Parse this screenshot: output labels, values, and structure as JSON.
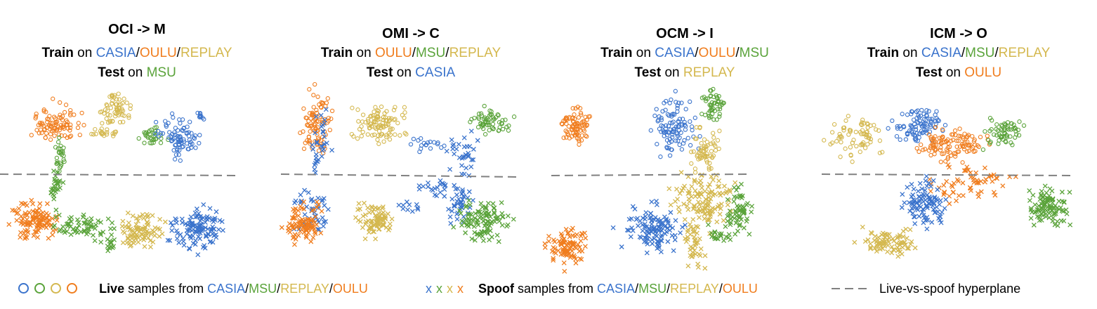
{
  "figure": {
    "legend": {
      "live_bold": "Live",
      "live_text": " samples from ",
      "spoof_bold": "Spoof",
      "spoof_text": " samples from ",
      "domains": [
        "CASIA",
        "MSU",
        "REPLAY",
        "OULU"
      ],
      "sep": "/",
      "hyperplane_label": "Live-vs-spoof hyperplane",
      "spoof_glyph": "x"
    },
    "colors": {
      "CASIA": "#3a73cc",
      "MSU": "#5aa33a",
      "REPLAY": "#d4b84f",
      "OULU": "#f07d1e",
      "hyperplane": "#808080"
    }
  },
  "chart_data": [
    {
      "type": "scatter",
      "title": "OCI -> M",
      "train_label": "Train",
      "train_on": " on ",
      "train_domains": [
        "CASIA",
        "OULU",
        "REPLAY"
      ],
      "test_label": "Test",
      "test_on": " on ",
      "test_domain": "MSU",
      "hyperplane": [
        [
          0,
          128
        ],
        [
          340,
          130
        ]
      ],
      "clusters": [
        {
          "domain": "OULU",
          "kind": "live",
          "cx": 80,
          "cy": 55,
          "rx": 28,
          "ry": 24,
          "n": 90
        },
        {
          "domain": "REPLAY",
          "kind": "live",
          "cx": 165,
          "cy": 35,
          "rx": 22,
          "ry": 18,
          "n": 60
        },
        {
          "domain": "REPLAY",
          "kind": "live",
          "cx": 150,
          "cy": 68,
          "rx": 18,
          "ry": 8,
          "n": 20
        },
        {
          "domain": "MSU",
          "kind": "live",
          "cx": 215,
          "cy": 75,
          "rx": 18,
          "ry": 12,
          "n": 30
        },
        {
          "domain": "CASIA",
          "kind": "live",
          "cx": 255,
          "cy": 75,
          "rx": 28,
          "ry": 30,
          "n": 80
        },
        {
          "domain": "CASIA",
          "kind": "live",
          "cx": 285,
          "cy": 45,
          "rx": 7,
          "ry": 8,
          "n": 10
        },
        {
          "domain": "MSU",
          "kind": "live",
          "cx": 85,
          "cy": 100,
          "rx": 8,
          "ry": 22,
          "n": 25
        },
        {
          "domain": "MSU",
          "kind": "spoof",
          "cx": 80,
          "cy": 145,
          "rx": 8,
          "ry": 30,
          "n": 30
        },
        {
          "domain": "OULU",
          "kind": "spoof",
          "cx": 50,
          "cy": 195,
          "rx": 28,
          "ry": 30,
          "n": 110
        },
        {
          "domain": "MSU",
          "kind": "spoof",
          "cx": 115,
          "cy": 205,
          "rx": 45,
          "ry": 18,
          "n": 60
        },
        {
          "domain": "MSU",
          "kind": "spoof",
          "cx": 155,
          "cy": 225,
          "rx": 12,
          "ry": 14,
          "n": 15
        },
        {
          "domain": "REPLAY",
          "kind": "spoof",
          "cx": 200,
          "cy": 208,
          "rx": 28,
          "ry": 26,
          "n": 90
        },
        {
          "domain": "CASIA",
          "kind": "spoof",
          "cx": 282,
          "cy": 205,
          "rx": 36,
          "ry": 30,
          "n": 120
        }
      ]
    },
    {
      "type": "scatter",
      "title": "OMI -> C",
      "train_label": "Train",
      "train_on": " on ",
      "train_domains": [
        "OULU",
        "MSU",
        "REPLAY"
      ],
      "test_label": "Test",
      "test_on": " on ",
      "test_domain": "CASIA",
      "hyperplane": [
        [
          10,
          128
        ],
        [
          350,
          132
        ]
      ],
      "clusters": [
        {
          "domain": "OULU",
          "kind": "live",
          "cx": 60,
          "cy": 60,
          "rx": 22,
          "ry": 45,
          "n": 90
        },
        {
          "domain": "CASIA",
          "kind": "spoof",
          "cx": 70,
          "cy": 80,
          "rx": 18,
          "ry": 40,
          "n": 25
        },
        {
          "domain": "CASIA",
          "kind": "spoof",
          "cx": 60,
          "cy": 115,
          "rx": 6,
          "ry": 18,
          "n": 8
        },
        {
          "domain": "REPLAY",
          "kind": "live",
          "cx": 150,
          "cy": 55,
          "rx": 35,
          "ry": 28,
          "n": 100
        },
        {
          "domain": "CASIA",
          "kind": "live",
          "cx": 220,
          "cy": 85,
          "rx": 25,
          "ry": 10,
          "n": 18
        },
        {
          "domain": "MSU",
          "kind": "live",
          "cx": 310,
          "cy": 55,
          "rx": 28,
          "ry": 20,
          "n": 60
        },
        {
          "domain": "CASIA",
          "kind": "spoof",
          "cx": 270,
          "cy": 100,
          "rx": 25,
          "ry": 30,
          "n": 35
        },
        {
          "domain": "CASIA",
          "kind": "spoof",
          "cx": 230,
          "cy": 145,
          "rx": 30,
          "ry": 12,
          "n": 20
        },
        {
          "domain": "CASIA",
          "kind": "spoof",
          "cx": 190,
          "cy": 175,
          "rx": 20,
          "ry": 8,
          "n": 10
        },
        {
          "domain": "CASIA",
          "kind": "spoof",
          "cx": 265,
          "cy": 170,
          "rx": 20,
          "ry": 30,
          "n": 40
        },
        {
          "domain": "CASIA",
          "kind": "spoof",
          "cx": 55,
          "cy": 180,
          "rx": 25,
          "ry": 30,
          "n": 45
        },
        {
          "domain": "OULU",
          "kind": "spoof",
          "cx": 40,
          "cy": 200,
          "rx": 25,
          "ry": 25,
          "n": 90
        },
        {
          "domain": "REPLAY",
          "kind": "spoof",
          "cx": 145,
          "cy": 195,
          "rx": 25,
          "ry": 22,
          "n": 80
        },
        {
          "domain": "MSU",
          "kind": "spoof",
          "cx": 300,
          "cy": 195,
          "rx": 35,
          "ry": 28,
          "n": 110
        }
      ]
    },
    {
      "type": "scatter",
      "title": "OCM -> I",
      "train_label": "Train",
      "train_on": " on ",
      "train_domains": [
        "CASIA",
        "OULU",
        "MSU"
      ],
      "test_label": "Test",
      "test_on": " on ",
      "test_domain": "REPLAY",
      "hyperplane": [
        [
          5,
          130
        ],
        [
          290,
          128
        ]
      ],
      "clusters": [
        {
          "domain": "OULU",
          "kind": "live",
          "cx": 40,
          "cy": 60,
          "rx": 22,
          "ry": 28,
          "n": 80
        },
        {
          "domain": "CASIA",
          "kind": "live",
          "cx": 180,
          "cy": 60,
          "rx": 30,
          "ry": 40,
          "n": 100
        },
        {
          "domain": "MSU",
          "kind": "live",
          "cx": 235,
          "cy": 30,
          "rx": 18,
          "ry": 22,
          "n": 50
        },
        {
          "domain": "REPLAY",
          "kind": "live",
          "cx": 225,
          "cy": 95,
          "rx": 20,
          "ry": 30,
          "n": 60
        },
        {
          "domain": "REPLAY",
          "kind": "spoof",
          "cx": 220,
          "cy": 165,
          "rx": 40,
          "ry": 40,
          "n": 120
        },
        {
          "domain": "REPLAY",
          "kind": "spoof",
          "cx": 210,
          "cy": 225,
          "rx": 15,
          "ry": 35,
          "n": 40
        },
        {
          "domain": "CASIA",
          "kind": "spoof",
          "cx": 150,
          "cy": 205,
          "rx": 40,
          "ry": 30,
          "n": 120
        },
        {
          "domain": "MSU",
          "kind": "spoof",
          "cx": 275,
          "cy": 180,
          "rx": 18,
          "ry": 32,
          "n": 60
        },
        {
          "domain": "MSU",
          "kind": "spoof",
          "cx": 245,
          "cy": 215,
          "rx": 18,
          "ry": 14,
          "n": 20
        },
        {
          "domain": "OULU",
          "kind": "spoof",
          "cx": 30,
          "cy": 230,
          "rx": 28,
          "ry": 28,
          "n": 90
        }
      ]
    },
    {
      "type": "scatter",
      "title": "ICM -> O",
      "train_label": "Train",
      "train_on": " on ",
      "train_domains": [
        "CASIA",
        "MSU",
        "REPLAY"
      ],
      "test_label": "Test",
      "test_on": " on ",
      "test_domain": "OULU",
      "hyperplane": [
        [
          0,
          128
        ],
        [
          355,
          130
        ]
      ],
      "clusters": [
        {
          "domain": "REPLAY",
          "kind": "live",
          "cx": 50,
          "cy": 75,
          "rx": 38,
          "ry": 28,
          "n": 70
        },
        {
          "domain": "CASIA",
          "kind": "live",
          "cx": 135,
          "cy": 60,
          "rx": 35,
          "ry": 25,
          "n": 90
        },
        {
          "domain": "OULU",
          "kind": "live",
          "cx": 185,
          "cy": 85,
          "rx": 45,
          "ry": 22,
          "n": 110
        },
        {
          "domain": "MSU",
          "kind": "live",
          "cx": 265,
          "cy": 70,
          "rx": 28,
          "ry": 18,
          "n": 60
        },
        {
          "domain": "OULU",
          "kind": "spoof",
          "cx": 215,
          "cy": 140,
          "rx": 60,
          "ry": 25,
          "n": 60
        },
        {
          "domain": "CASIA",
          "kind": "spoof",
          "cx": 145,
          "cy": 170,
          "rx": 35,
          "ry": 30,
          "n": 100
        },
        {
          "domain": "MSU",
          "kind": "spoof",
          "cx": 325,
          "cy": 175,
          "rx": 30,
          "ry": 28,
          "n": 100
        },
        {
          "domain": "REPLAY",
          "kind": "spoof",
          "cx": 95,
          "cy": 225,
          "rx": 38,
          "ry": 20,
          "n": 80
        }
      ]
    }
  ]
}
